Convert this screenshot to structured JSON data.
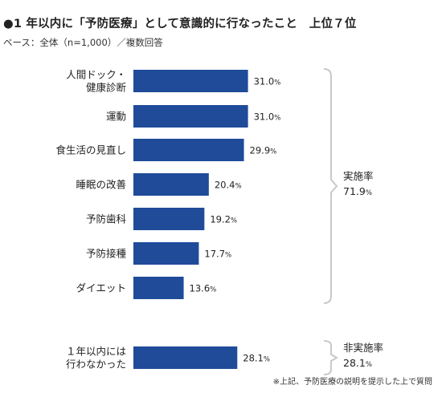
{
  "title": "●1 年以内に「予防医療」として意識的に行なったこと　上位７位",
  "base": "ベース：全体（n=1,000）／複数回答",
  "note": "※上記、予防医療の説明を提示した上で質問",
  "colors": {
    "bar": "#1f4b99",
    "bracket": "#c9c9c9"
  },
  "chart_data": {
    "type": "bar",
    "orientation": "horizontal",
    "unit": "%",
    "xlim": [
      0,
      40
    ],
    "grid": false,
    "categories": [
      [
        "人間ドック・",
        "健康診断"
      ],
      [
        "運動"
      ],
      [
        "食生活の見直し"
      ],
      [
        "睡眠の改善"
      ],
      [
        "予防歯科"
      ],
      [
        "予防接種"
      ],
      [
        "ダイエット"
      ],
      [
        "１年以内には",
        "行わなかった"
      ]
    ],
    "values": [
      31.0,
      31.0,
      29.9,
      20.4,
      19.2,
      17.7,
      13.6,
      28.1
    ],
    "value_labels": [
      "31.0",
      "31.0",
      "29.9",
      "20.4",
      "19.2",
      "17.7",
      "13.6",
      "28.1"
    ],
    "groups": [
      {
        "label": "実施率",
        "value": "71.9",
        "unit": "%",
        "from": 0,
        "to": 6
      },
      {
        "label": "非実施率",
        "value": "28.1",
        "unit": "%",
        "from": 7,
        "to": 7
      }
    ]
  }
}
